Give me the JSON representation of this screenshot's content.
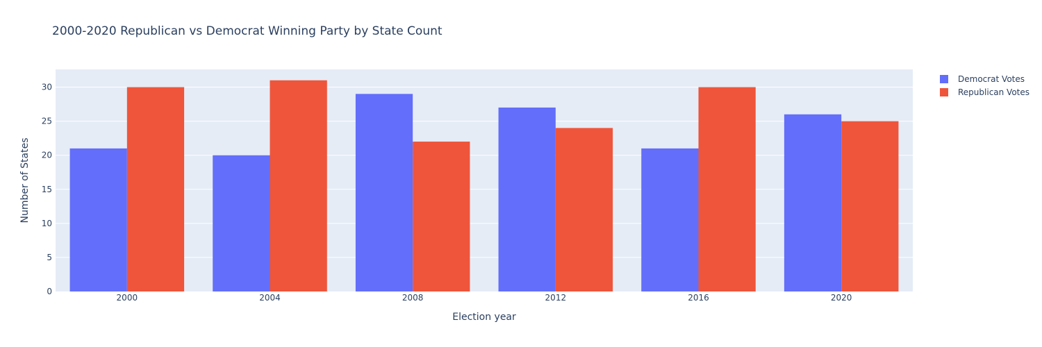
{
  "chart_data": {
    "type": "bar",
    "title": "2000-2020 Republican vs Democrat Winning Party by State Count",
    "xlabel": "Election year",
    "ylabel": "Number of States",
    "categories": [
      "2000",
      "2004",
      "2008",
      "2012",
      "2016",
      "2020"
    ],
    "series": [
      {
        "name": "Democrat Votes",
        "color": "#636efa",
        "values": [
          21,
          20,
          29,
          27,
          21,
          26
        ]
      },
      {
        "name": "Republican Votes",
        "color": "#ef553b",
        "values": [
          30,
          31,
          22,
          24,
          30,
          25
        ]
      }
    ],
    "ylim": [
      0,
      32.6
    ],
    "yticks": [
      0,
      5,
      10,
      15,
      20,
      25,
      30
    ],
    "grid": true,
    "legend": "top-right",
    "plot_bg": "#e5ecf6"
  }
}
